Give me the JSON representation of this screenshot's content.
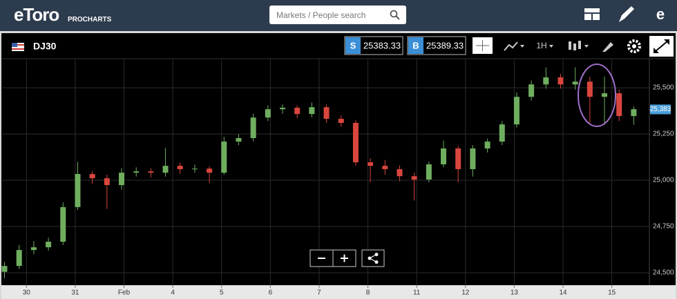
{
  "header": {
    "logo": "eToro",
    "logo_sub": "PROCHARTS",
    "search_placeholder": "Markets / People search"
  },
  "toolbar": {
    "instrument": "DJ30",
    "sell_label": "S",
    "sell_price": "25383.33",
    "buy_label": "B",
    "buy_price": "25389.33",
    "interval": "1H"
  },
  "chart_data": {
    "type": "candlestick",
    "x": [
      -0.45,
      -0.15,
      0.15,
      0.45,
      0.75,
      1.05,
      1.35,
      1.65,
      1.95,
      2.25,
      2.55,
      2.85,
      3.15,
      3.45,
      3.75,
      4.05,
      4.35,
      4.65,
      4.95,
      5.25,
      5.55,
      5.85,
      6.15,
      6.45,
      6.75,
      7.05,
      7.35,
      7.65,
      7.95,
      8.25,
      8.55,
      8.85,
      9.15,
      9.45,
      9.75,
      10.05,
      10.35,
      10.65,
      10.95,
      11.25,
      11.55,
      11.85,
      12.15,
      12.45
    ],
    "open": [
      24505,
      24537,
      24623,
      24638,
      24668,
      24855,
      25034,
      25011,
      24974,
      25041,
      25048,
      25041,
      25078,
      25060,
      25063,
      25041,
      25209,
      25228,
      25339,
      25384,
      25392,
      25358,
      25395,
      25332,
      25310,
      25097,
      25078,
      25060,
      25022,
      25004,
      25086,
      25172,
      25060,
      25172,
      25209,
      25302,
      25451,
      25518,
      25556,
      25518,
      25533,
      25451,
      25470,
      25347
    ],
    "high": [
      24560,
      24650,
      24672,
      24690,
      24880,
      25100,
      25050,
      25030,
      25065,
      25070,
      25065,
      25175,
      25095,
      25085,
      25075,
      25235,
      25250,
      25360,
      25405,
      25410,
      25405,
      25420,
      25410,
      25350,
      25325,
      25120,
      25110,
      25080,
      25040,
      25100,
      25215,
      25185,
      25190,
      25225,
      25320,
      25475,
      25540,
      25610,
      25575,
      25610,
      25560,
      25560,
      25490,
      25400
    ],
    "low": [
      24470,
      24520,
      24600,
      24620,
      24650,
      24840,
      24980,
      24845,
      24950,
      25020,
      25015,
      25020,
      25035,
      25040,
      24985,
      25030,
      25190,
      25210,
      25320,
      25360,
      25335,
      25340,
      25310,
      25290,
      25080,
      24990,
      25030,
      24995,
      24890,
      24990,
      25070,
      24990,
      25020,
      25150,
      25190,
      25285,
      25430,
      25495,
      25495,
      25490,
      25310,
      25300,
      25320,
      25300
    ],
    "close": [
      24537,
      24623,
      24638,
      24668,
      24855,
      25034,
      25011,
      24974,
      25041,
      25048,
      25041,
      25078,
      25060,
      25063,
      25041,
      25209,
      25228,
      25339,
      25384,
      25392,
      25358,
      25395,
      25332,
      25310,
      25097,
      25078,
      25060,
      25022,
      25004,
      25086,
      25172,
      25060,
      25172,
      25209,
      25302,
      25451,
      25518,
      25556,
      25518,
      25533,
      25451,
      25470,
      25347,
      25384
    ],
    "up_color": "#6fae5f",
    "down_color": "#d9463e",
    "xlim": [
      -0.5,
      12.77
    ],
    "xticks": [
      {
        "value": 0,
        "label": "30"
      },
      {
        "value": 1,
        "label": "31"
      },
      {
        "value": 2,
        "label": "Feb"
      },
      {
        "value": 3,
        "label": "4"
      },
      {
        "value": 4,
        "label": "5"
      },
      {
        "value": 5,
        "label": "6"
      },
      {
        "value": 6,
        "label": "7"
      },
      {
        "value": 7,
        "label": "8"
      },
      {
        "value": 8,
        "label": "11"
      },
      {
        "value": 9,
        "label": "12"
      },
      {
        "value": 10,
        "label": "13"
      },
      {
        "value": 11,
        "label": "14"
      },
      {
        "value": 12,
        "label": "15"
      }
    ],
    "ylim": [
      24433,
      25657
    ],
    "yticks": [
      {
        "value": 24500,
        "label": "24,500"
      },
      {
        "value": 24750,
        "label": "24,750"
      },
      {
        "value": 25000,
        "label": "25,000"
      },
      {
        "value": 25250,
        "label": "25,250"
      },
      {
        "value": 25500,
        "label": "25,500"
      }
    ],
    "last_price": {
      "value": 25383,
      "label": "25,383"
    },
    "grid": true
  }
}
